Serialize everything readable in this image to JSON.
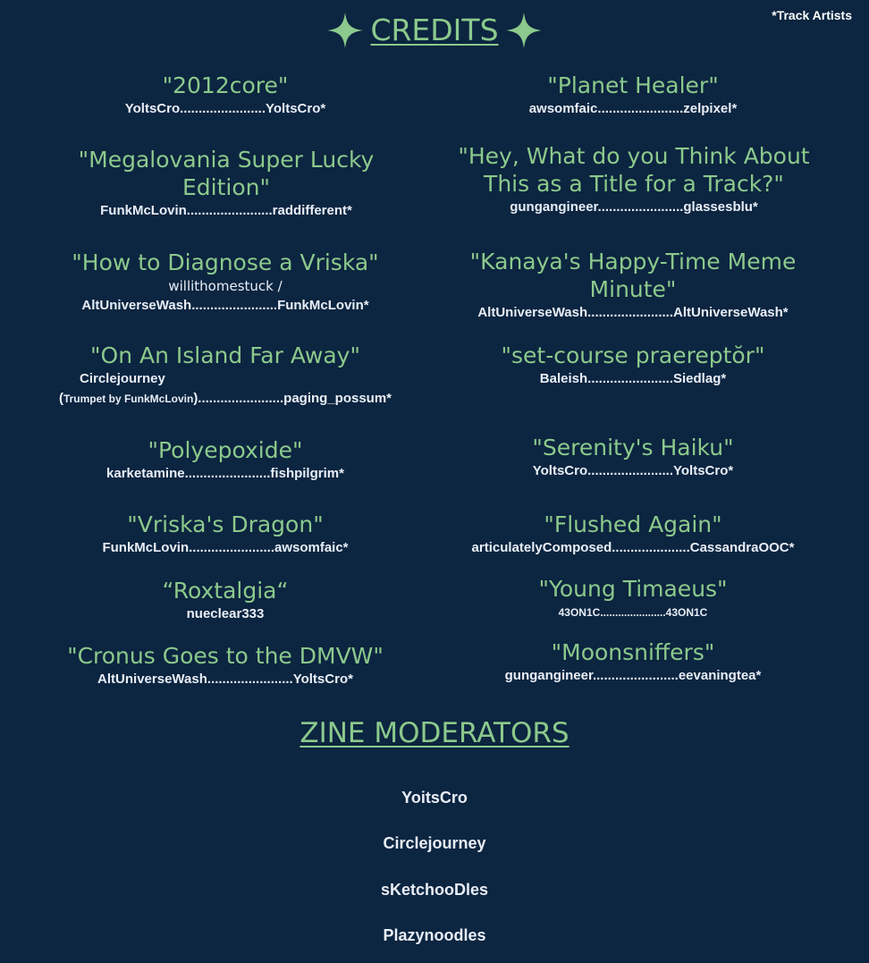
{
  "note": "*Track Artists",
  "credits": {
    "title": "CREDITS ",
    "icon": "sparkle-icon"
  },
  "tracks": [
    {
      "title": "\"2012core\"",
      "credit": "YoltsCro.......................YoltsCro*"
    },
    {
      "title": "\"Planet Healer\"",
      "credit": "awsomfaic.......................zelpixel*"
    },
    {
      "title": "\"Megalovania Super Lucky Edition\"",
      "credit": "FunkMcLovin.......................raddifferent*"
    },
    {
      "title": "\"Hey, What do you Think About This as a Title for a Track?\"",
      "credit": "gungangineer.......................glassesblu*"
    },
    {
      "title": "\"How to Diagnose a Vriska\"",
      "credit_line1": "willithomestuck /",
      "credit": "AltUniverseWash.......................FunkMcLovin*"
    },
    {
      "title": "\"Kanaya's Happy-Time Meme Minute\"",
      "credit": "AltUniverseWash.......................AltUniverseWash*"
    },
    {
      "title": "\"On An Island Far Away\"",
      "credit_line1": "Circlejourney",
      "credit_paren_open": "(",
      "credit_small": "Trumpet by FunkMcLovin",
      "credit": ").......................paging_possum*"
    },
    {
      "title": "\"set-course praereptŏr\"",
      "credit": "Baleish.......................Siedlag*"
    },
    {
      "title": "\"Polyepoxide\"",
      "credit": "karketamine.......................fishpilgrim*"
    },
    {
      "title": "\"Serenity's Haiku\"",
      "credit": "YoltsCro.......................YoltsCro*"
    },
    {
      "title": "\"Vriska's Dragon\"",
      "credit": "FunkMcLovin.......................awsomfaic*"
    },
    {
      "title": "\"Flushed Again\"",
      "credit": "articulatelyComposed.....................CassandraOOC*"
    },
    {
      "title": "“Roxtalgia“",
      "credit": "nueclear333"
    },
    {
      "title": "\"Young Timaeus\"",
      "credit": "43ON1C......................43ON1C"
    },
    {
      "title": "\"Cronus Goes to the DMVW\"",
      "credit": "AltUniverseWash.......................YoltsCro*"
    },
    {
      "title": "\"Moonsniffers\"",
      "credit": "gungangineer.......................eevaningtea*"
    }
  ],
  "moderators": {
    "title": "ZINE MODERATORS",
    "names": [
      "YoitsCro",
      "Circlejourney",
      "sKetchooDles",
      "Plazynoodles"
    ]
  }
}
